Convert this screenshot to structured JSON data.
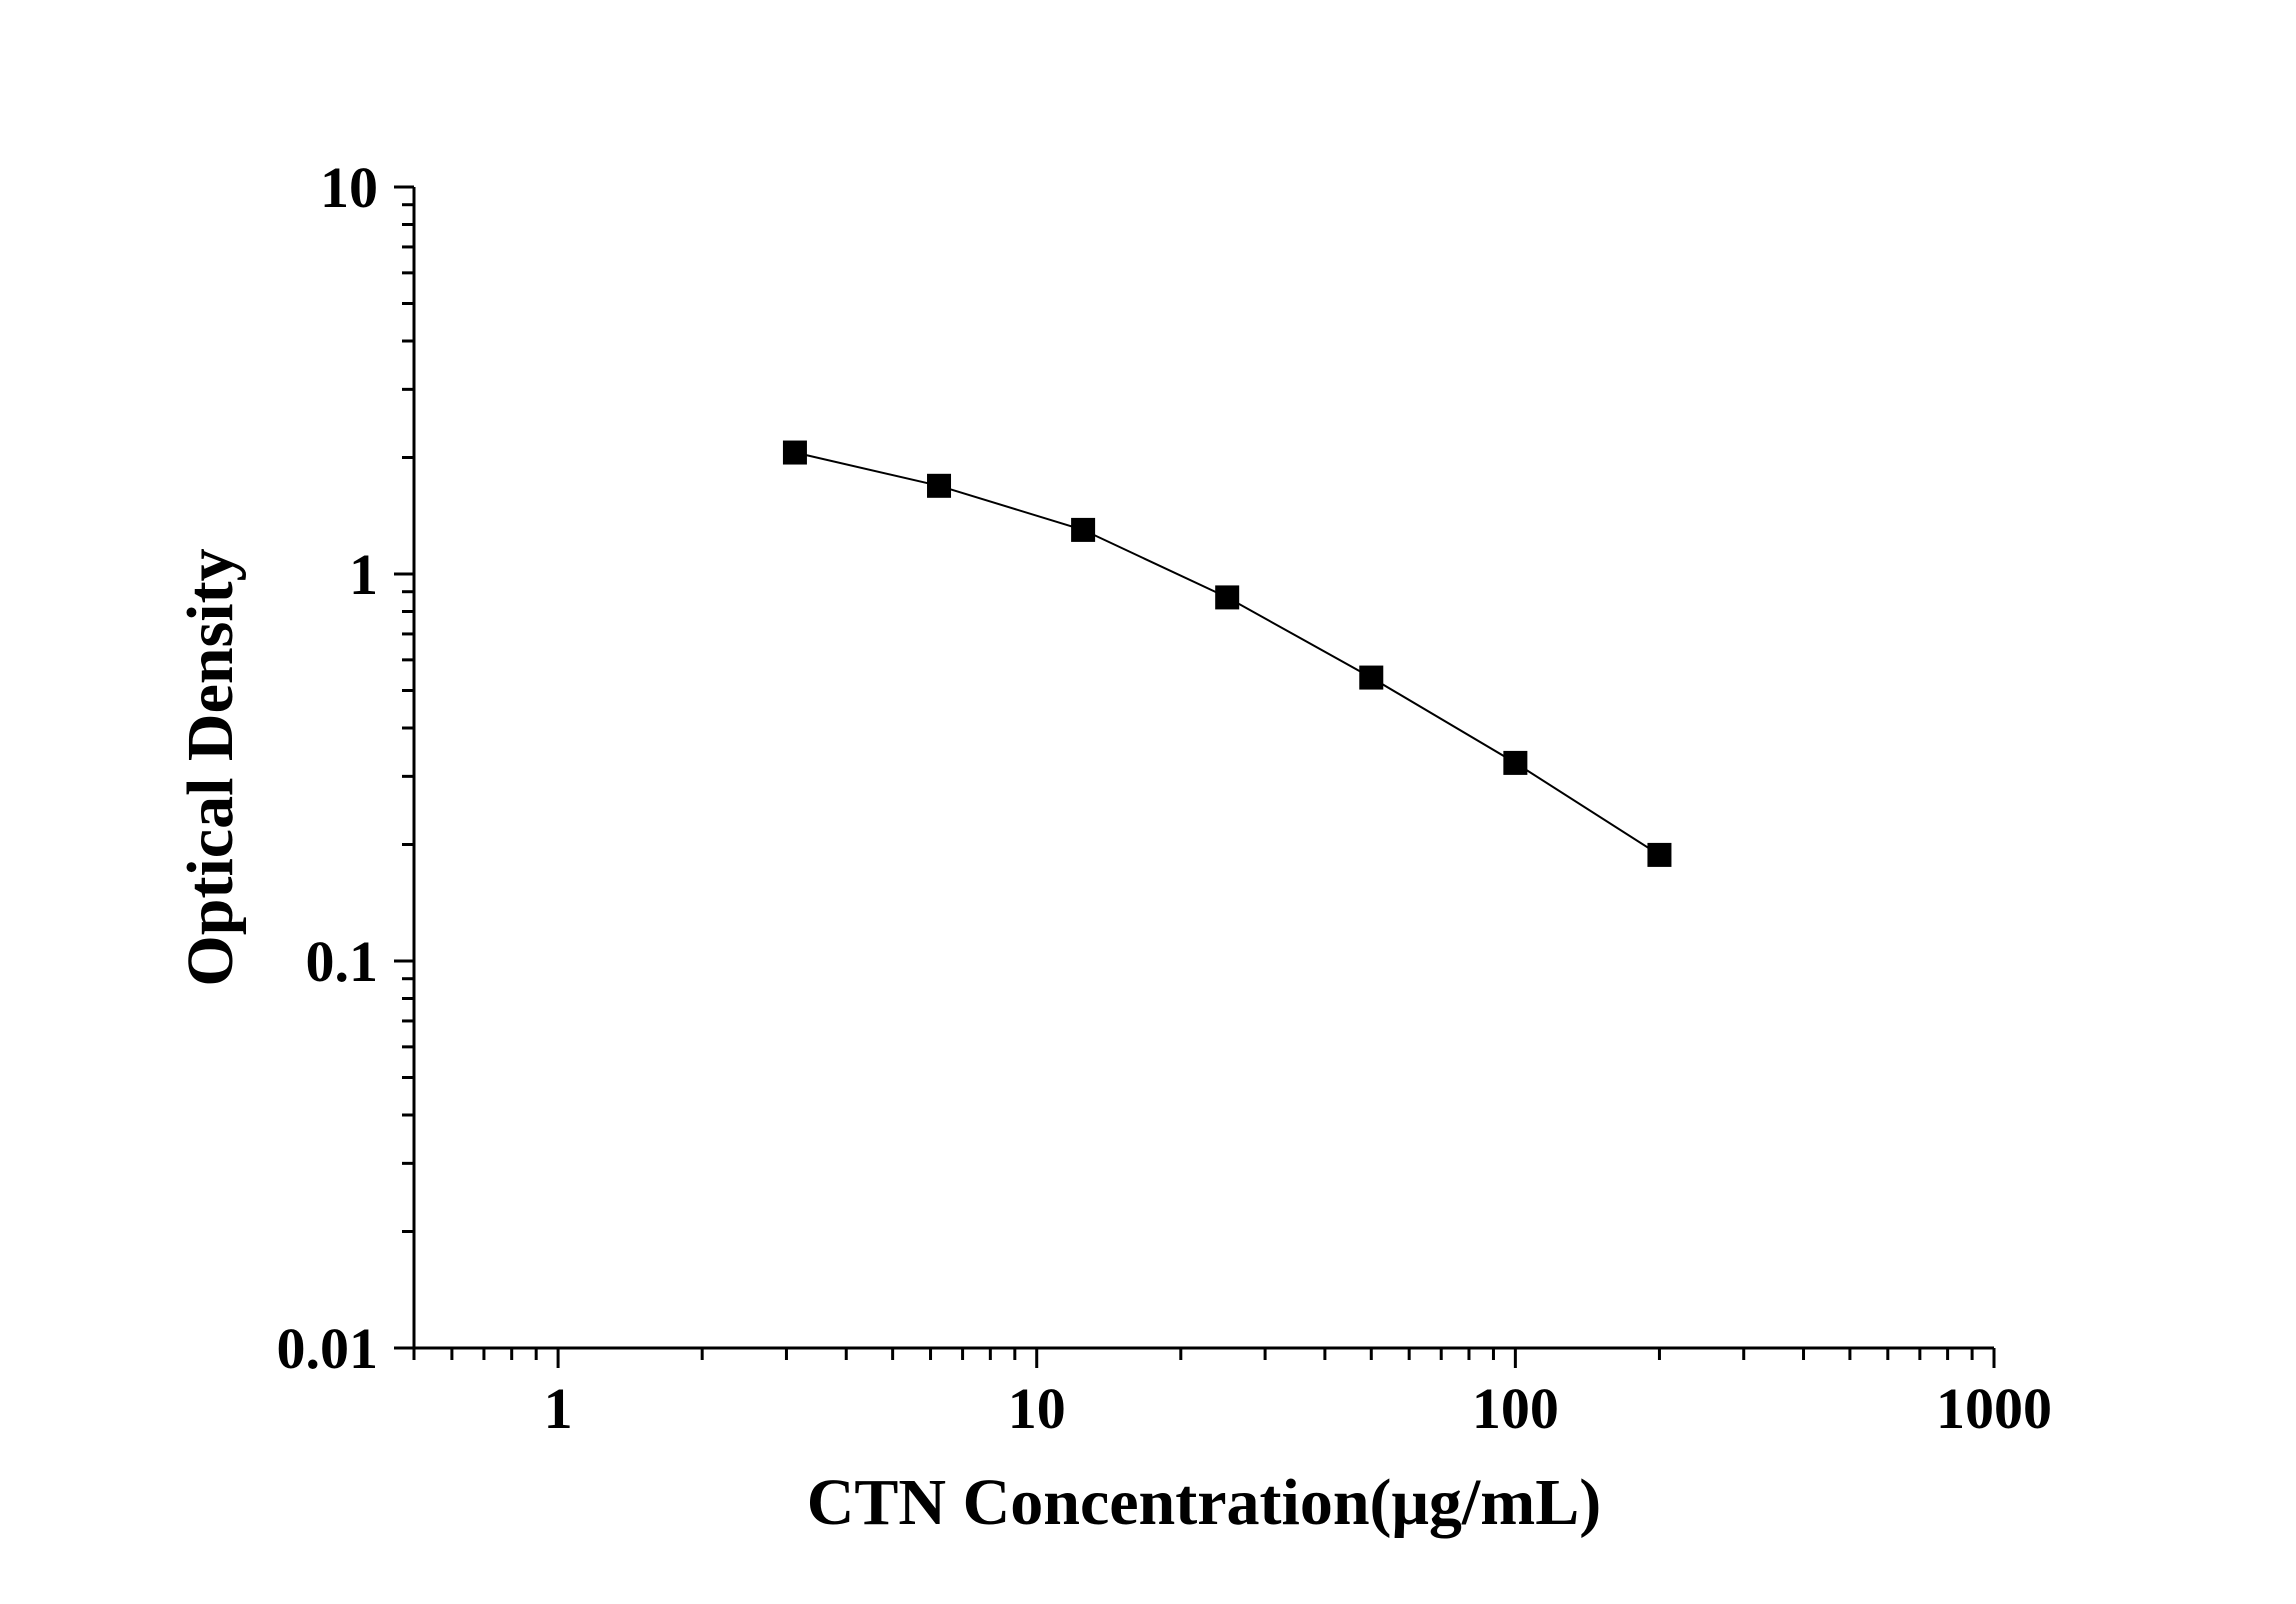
{
  "chart_data": {
    "type": "line",
    "xlabel": "CTN Concentration(μg/mL)",
    "ylabel": "Optical Density",
    "xscale": "log",
    "yscale": "log",
    "xlim": [
      0.5,
      1000
    ],
    "ylim": [
      0.01,
      10
    ],
    "x_ticks": [
      {
        "value": 1,
        "label": "1"
      },
      {
        "value": 10,
        "label": "10"
      },
      {
        "value": 100,
        "label": "100"
      },
      {
        "value": 1000,
        "label": "1000"
      }
    ],
    "y_ticks": [
      {
        "value": 0.01,
        "label": "0.01"
      },
      {
        "value": 0.1,
        "label": "0.1"
      },
      {
        "value": 1,
        "label": "1"
      },
      {
        "value": 10,
        "label": "10"
      }
    ],
    "grid": false,
    "marker": "square",
    "series": [
      {
        "color": "#000000",
        "x": [
          3.125,
          6.25,
          12.5,
          25,
          50,
          100,
          200
        ],
        "y": [
          2.06,
          1.69,
          1.3,
          0.87,
          0.54,
          0.325,
          0.188
        ]
      }
    ]
  }
}
